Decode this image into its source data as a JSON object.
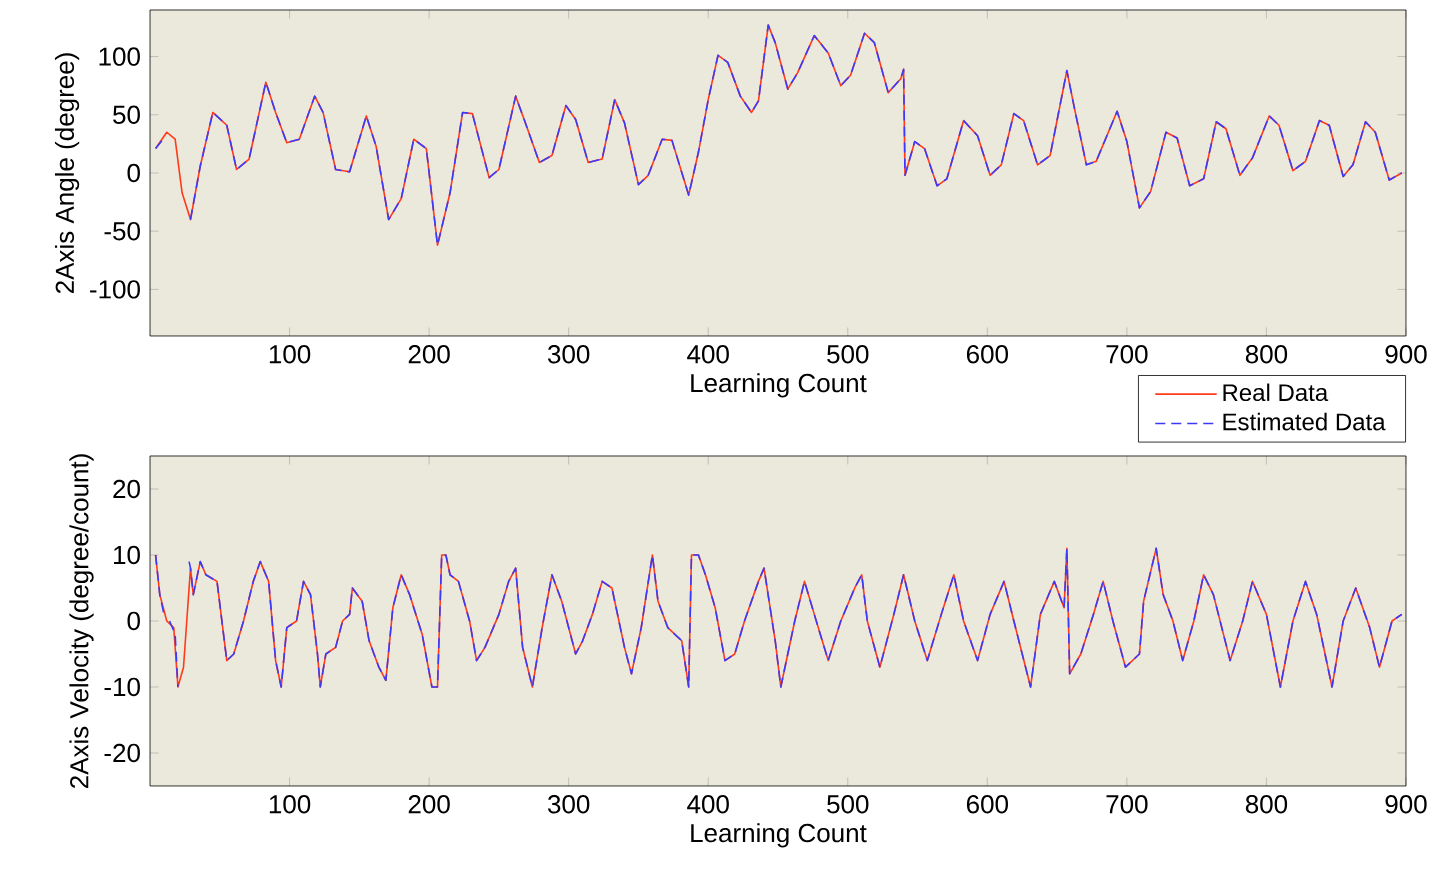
{
  "chart_data": [
    {
      "type": "line",
      "xlabel": "Learning Count",
      "ylabel": "2Axis Angle (degree)",
      "xlim": [
        0,
        900
      ],
      "ylim": [
        -140,
        140
      ],
      "xticks": [
        100,
        200,
        300,
        400,
        500,
        600,
        700,
        800,
        900
      ],
      "yticks": [
        -100,
        -50,
        0,
        50,
        100
      ],
      "legend": "bottom right",
      "series": [
        {
          "name": "Real Data",
          "color": "#ff3a1a",
          "line_style": "solid",
          "x": [
            4,
            12,
            18,
            23,
            29,
            36,
            45,
            55,
            62,
            71,
            83,
            90,
            98,
            107,
            118,
            124,
            133,
            143,
            155,
            162,
            171,
            180,
            189,
            198,
            206,
            215,
            224,
            231,
            243,
            250,
            262,
            269,
            279,
            288,
            298,
            305,
            314,
            324,
            333,
            340,
            350,
            357,
            367,
            374,
            386,
            393,
            400,
            407,
            414,
            423,
            431,
            436,
            443,
            448,
            457,
            464,
            476,
            486,
            495,
            502,
            512,
            519,
            529,
            538,
            540,
            541,
            548,
            555,
            564,
            571,
            583,
            593,
            602,
            610,
            619,
            626,
            636,
            645,
            657,
            662,
            671,
            678,
            693,
            700,
            709,
            717,
            728,
            736,
            745,
            755,
            764,
            771,
            781,
            790,
            802,
            809,
            819,
            828,
            838,
            845,
            855,
            862,
            871,
            878,
            888,
            897
          ],
          "values": [
            21,
            35,
            29,
            -17,
            -40,
            6,
            52,
            41,
            3,
            12,
            78,
            52,
            26,
            29,
            66,
            52,
            3,
            1,
            49,
            23,
            -40,
            -22,
            29,
            21,
            -62,
            -17,
            52,
            51,
            -4,
            3,
            66,
            43,
            9,
            15,
            58,
            46,
            9,
            12,
            63,
            43,
            -10,
            -2,
            29,
            28,
            -19,
            18,
            63,
            101,
            95,
            66,
            52,
            62,
            127,
            112,
            72,
            86,
            118,
            103,
            75,
            84,
            120,
            112,
            69,
            81,
            89,
            -2,
            27,
            21,
            -11,
            -5,
            45,
            32,
            -2,
            7,
            51,
            45,
            7,
            15,
            88,
            58,
            7,
            10,
            53,
            27,
            -30,
            -16,
            35,
            30,
            -11,
            -5,
            44,
            38,
            -2,
            13,
            49,
            41,
            2,
            10,
            45,
            41,
            -3,
            7,
            44,
            35,
            -6,
            0
          ]
        },
        {
          "name": "Estimated Data",
          "color": "#3a3aff",
          "line_style": "dashed",
          "x": [
            4,
            10,
            13,
            15,
            17,
            21,
            23,
            26,
            29,
            36,
            45,
            55,
            62,
            71,
            83,
            90,
            98,
            107,
            118,
            124,
            133,
            143,
            155,
            162,
            171,
            180,
            189,
            198,
            206,
            215,
            224,
            231,
            243,
            250,
            262,
            269,
            279,
            288,
            298,
            305,
            314,
            324,
            333,
            340,
            350,
            357,
            367,
            374,
            386,
            393,
            400,
            407,
            414,
            423,
            431,
            436,
            443,
            448,
            457,
            464,
            476,
            486,
            495,
            502,
            512,
            519,
            529,
            538,
            540,
            541,
            548,
            555,
            564,
            571,
            583,
            593,
            602,
            610,
            619,
            626,
            636,
            645,
            657,
            662,
            671,
            678,
            693,
            700,
            709,
            717,
            728,
            736,
            745,
            755,
            764,
            771,
            781,
            790,
            802,
            809,
            819,
            828,
            838,
            845,
            855,
            862,
            871,
            878,
            888,
            897
          ],
          "values": [
            21,
            30,
            null,
            null,
            null,
            null,
            null,
            null,
            -40,
            6,
            52,
            41,
            3,
            12,
            78,
            52,
            26,
            29,
            66,
            52,
            3,
            1,
            49,
            23,
            -40,
            -22,
            29,
            21,
            -62,
            -17,
            52,
            51,
            -4,
            3,
            66,
            43,
            9,
            15,
            58,
            46,
            9,
            12,
            63,
            43,
            -10,
            -2,
            29,
            28,
            -19,
            18,
            63,
            101,
            95,
            66,
            52,
            62,
            127,
            112,
            72,
            86,
            118,
            103,
            75,
            84,
            120,
            112,
            69,
            81,
            89,
            -2,
            27,
            21,
            -11,
            -5,
            45,
            32,
            -2,
            7,
            51,
            45,
            7,
            15,
            88,
            58,
            7,
            10,
            53,
            27,
            -30,
            -16,
            35,
            30,
            -11,
            -5,
            44,
            38,
            -2,
            13,
            49,
            41,
            2,
            10,
            45,
            41,
            -3,
            7,
            44,
            35,
            -6,
            0
          ]
        }
      ]
    },
    {
      "type": "line",
      "xlabel": "Learning Count",
      "ylabel": "2Axis Velocity (degree/count)",
      "xlim": [
        0,
        900
      ],
      "ylim": [
        -25,
        25
      ],
      "xticks": [
        100,
        200,
        300,
        400,
        500,
        600,
        700,
        800,
        900
      ],
      "yticks": [
        -20,
        -10,
        0,
        10,
        20
      ],
      "series": [
        {
          "color": "#ff3a1a",
          "line_style": "solid",
          "x": [
            4,
            7,
            12,
            17,
            20,
            24,
            29,
            31,
            36,
            40,
            48,
            55,
            60,
            67,
            74,
            79,
            85,
            90,
            94,
            98,
            105,
            110,
            115,
            120,
            122,
            126,
            133,
            138,
            143,
            145,
            152,
            157,
            164,
            169,
            174,
            180,
            186,
            195,
            202,
            206,
            209,
            212,
            215,
            221,
            229,
            234,
            240,
            250,
            257,
            262,
            267,
            274,
            281,
            288,
            295,
            305,
            310,
            317,
            324,
            331,
            340,
            345,
            352,
            360,
            364,
            371,
            381,
            386,
            388,
            393,
            398,
            405,
            412,
            419,
            426,
            436,
            440,
            448,
            452,
            462,
            469,
            476,
            486,
            495,
            505,
            510,
            514,
            523,
            533,
            540,
            548,
            557,
            567,
            576,
            583,
            593,
            602,
            612,
            619,
            631,
            638,
            648,
            655,
            657,
            659,
            667,
            676,
            683,
            690,
            699,
            709,
            712,
            721,
            726,
            733,
            740,
            748,
            755,
            762,
            774,
            783,
            790,
            800,
            810,
            819,
            828,
            836,
            847,
            855,
            864,
            874,
            881,
            890,
            897
          ],
          "values": [
            10,
            4,
            0,
            -1,
            -10,
            -7,
            8,
            4,
            9,
            7,
            6,
            -6,
            -5,
            0,
            6,
            9,
            6,
            -6,
            -10,
            -1,
            0,
            6,
            4,
            -5,
            -10,
            -5,
            -4,
            0,
            1,
            5,
            3,
            -3,
            -7,
            -9,
            2,
            7,
            4,
            -2,
            -10,
            -10,
            10,
            10,
            7,
            6,
            0,
            -6,
            -4,
            1,
            6,
            8,
            -4,
            -10,
            -1,
            7,
            3,
            -5,
            -3,
            1,
            6,
            5,
            -4,
            -8,
            -1,
            10,
            3,
            -1,
            -3,
            -10,
            10,
            10,
            7,
            2,
            -6,
            -5,
            0,
            6,
            8,
            -3,
            -10,
            0,
            6,
            1,
            -6,
            0,
            5,
            7,
            0,
            -7,
            1,
            7,
            0,
            -6,
            1,
            7,
            0,
            -6,
            1,
            6,
            0,
            -10,
            1,
            6,
            2,
            11,
            -8,
            -5,
            1,
            6,
            0,
            -7,
            -5,
            3,
            11,
            4,
            0,
            -6,
            0,
            7,
            4,
            -6,
            0,
            6,
            1,
            -10,
            0,
            6,
            1,
            -10,
            0,
            5,
            -1,
            -7,
            0,
            1
          ]
        },
        {
          "color": "#3a3aff",
          "line_style": "dashed",
          "x": [
            4,
            7,
            10,
            12,
            14,
            18,
            20,
            22,
            24,
            26,
            28,
            29,
            31,
            36,
            40,
            48,
            55,
            60,
            67,
            74,
            79,
            85,
            90,
            94,
            98,
            105,
            110,
            115,
            120,
            122,
            126,
            133,
            138,
            143,
            145,
            152,
            157,
            164,
            169,
            174,
            180,
            186,
            195,
            202,
            206,
            209,
            212,
            215,
            221,
            229,
            234,
            240,
            250,
            257,
            262,
            267,
            274,
            281,
            288,
            295,
            305,
            310,
            317,
            324,
            331,
            340,
            345,
            352,
            360,
            364,
            371,
            381,
            386,
            388,
            393,
            398,
            405,
            412,
            419,
            426,
            436,
            440,
            448,
            452,
            462,
            469,
            476,
            486,
            495,
            505,
            510,
            514,
            523,
            533,
            540,
            548,
            557,
            567,
            576,
            583,
            593,
            602,
            612,
            619,
            631,
            638,
            648,
            655,
            657,
            659,
            667,
            676,
            683,
            690,
            699,
            709,
            712,
            721,
            726,
            733,
            740,
            748,
            755,
            762,
            774,
            783,
            790,
            800,
            810,
            819,
            828,
            836,
            847,
            855,
            864,
            874,
            881,
            890,
            897
          ],
          "values": [
            10,
            4,
            1,
            null,
            0,
            -2,
            -10,
            null,
            null,
            null,
            9,
            8,
            4,
            9,
            7,
            6,
            -6,
            -5,
            0,
            6,
            9,
            6,
            -6,
            -10,
            -1,
            0,
            6,
            4,
            -5,
            -10,
            -5,
            -4,
            0,
            1,
            5,
            3,
            -3,
            -7,
            -9,
            2,
            7,
            4,
            -2,
            -10,
            -10,
            10,
            10,
            7,
            6,
            0,
            -6,
            -4,
            1,
            6,
            8,
            -4,
            -10,
            -1,
            7,
            3,
            -5,
            -3,
            1,
            6,
            5,
            -4,
            -8,
            -1,
            10,
            3,
            -1,
            -3,
            -10,
            10,
            10,
            7,
            2,
            -6,
            -5,
            0,
            6,
            8,
            -3,
            -10,
            0,
            6,
            1,
            -6,
            0,
            5,
            7,
            0,
            -7,
            1,
            7,
            0,
            -6,
            1,
            7,
            0,
            -6,
            1,
            6,
            0,
            -10,
            1,
            6,
            2,
            11,
            -8,
            -5,
            1,
            6,
            0,
            -7,
            -5,
            3,
            11,
            4,
            0,
            -6,
            0,
            7,
            4,
            -6,
            0,
            6,
            1,
            -10,
            0,
            6,
            1,
            -10,
            0,
            5,
            -1,
            -7,
            0,
            1
          ]
        }
      ]
    }
  ]
}
